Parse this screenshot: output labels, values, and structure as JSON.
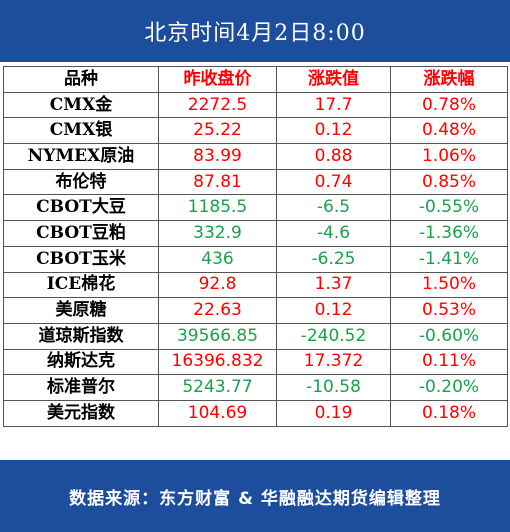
{
  "title": "北京时间4月2日8:00",
  "headers": {
    "name": "品种",
    "price": "昨收盘价",
    "change": "涨跌值",
    "pct": "涨跌幅"
  },
  "colors": {
    "banner": "#1d4d9d",
    "up": "#ff0000",
    "down": "#1aa14a"
  },
  "rows": [
    {
      "name": "CMX金",
      "price": "2272.5",
      "change": "17.7",
      "pct": "0.78%",
      "dir": "up"
    },
    {
      "name": "CMX银",
      "price": "25.22",
      "change": "0.12",
      "pct": "0.48%",
      "dir": "up"
    },
    {
      "name": "NYMEX原油",
      "price": "83.99",
      "change": "0.88",
      "pct": "1.06%",
      "dir": "up"
    },
    {
      "name": "布伦特",
      "price": "87.81",
      "change": "0.74",
      "pct": "0.85%",
      "dir": "up"
    },
    {
      "name": "CBOT大豆",
      "price": "1185.5",
      "change": "-6.5",
      "pct": "-0.55%",
      "dir": "down"
    },
    {
      "name": "CBOT豆粕",
      "price": "332.9",
      "change": "-4.6",
      "pct": "-1.36%",
      "dir": "down"
    },
    {
      "name": "CBOT玉米",
      "price": "436",
      "change": "-6.25",
      "pct": "-1.41%",
      "dir": "down"
    },
    {
      "name": "ICE棉花",
      "price": "92.8",
      "change": "1.37",
      "pct": "1.50%",
      "dir": "up"
    },
    {
      "name": "美原糖",
      "price": "22.63",
      "change": "0.12",
      "pct": "0.53%",
      "dir": "up"
    },
    {
      "name": "道琼斯指数",
      "price": "39566.85",
      "change": "-240.52",
      "pct": "-0.60%",
      "dir": "down"
    },
    {
      "name": "纳斯达克",
      "price": "16396.832",
      "change": "17.372",
      "pct": "0.11%",
      "dir": "up"
    },
    {
      "name": "标准普尔",
      "price": "5243.77",
      "change": "-10.58",
      "pct": "-0.20%",
      "dir": "down"
    },
    {
      "name": "美元指数",
      "price": "104.69",
      "change": "0.19",
      "pct": "0.18%",
      "dir": "up"
    }
  ],
  "footer": "数据来源：东方财富 & 华融融达期货编辑整理"
}
